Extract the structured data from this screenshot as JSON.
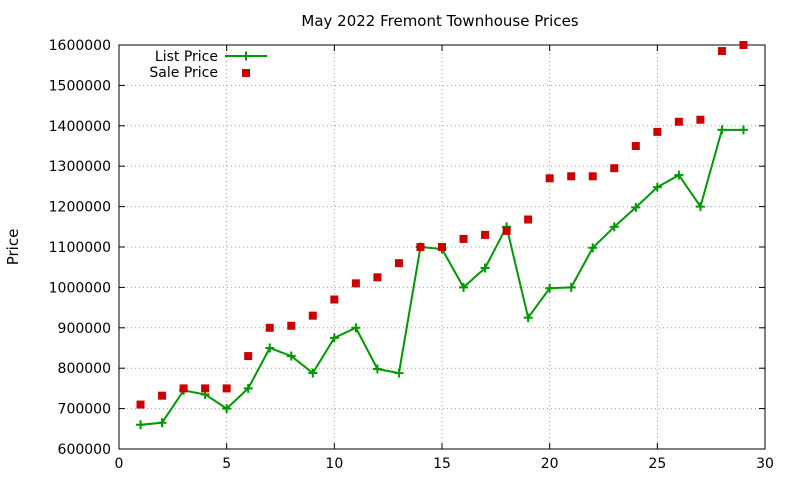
{
  "chart_data": {
    "type": "line",
    "title": "May 2022 Fremont Townhouse Prices",
    "xlabel": "",
    "ylabel": "Price",
    "xlim": [
      0,
      30
    ],
    "ylim": [
      600000,
      1600000
    ],
    "x_ticks": [
      0,
      5,
      10,
      15,
      20,
      25,
      30
    ],
    "y_ticks": [
      600000,
      700000,
      800000,
      900000,
      1000000,
      1100000,
      1200000,
      1300000,
      1400000,
      1500000,
      1600000
    ],
    "grid": true,
    "legend_position": "top-left",
    "series": [
      {
        "name": "List Price",
        "type": "line",
        "marker": "plus",
        "color": "#009900",
        "points": [
          [
            1,
            660000
          ],
          [
            2,
            665000
          ],
          [
            3,
            745000
          ],
          [
            4,
            735000
          ],
          [
            5,
            700000
          ],
          [
            6,
            750000
          ],
          [
            7,
            850000
          ],
          [
            8,
            830000
          ],
          [
            9,
            788000
          ],
          [
            10,
            875000
          ],
          [
            11,
            900000
          ],
          [
            12,
            798000
          ],
          [
            13,
            788000
          ],
          [
            14,
            1100000
          ],
          [
            15,
            1095000
          ],
          [
            16,
            1000000
          ],
          [
            17,
            1048000
          ],
          [
            18,
            1150000
          ],
          [
            19,
            925000
          ],
          [
            20,
            998000
          ],
          [
            21,
            1000000
          ],
          [
            22,
            1098000
          ],
          [
            23,
            1150000
          ],
          [
            24,
            1198000
          ],
          [
            25,
            1248000
          ],
          [
            26,
            1278000
          ],
          [
            27,
            1200000
          ],
          [
            28,
            1390000
          ],
          [
            29,
            1390000
          ]
        ]
      },
      {
        "name": "Sale Price",
        "type": "scatter",
        "marker": "square",
        "color": "#cc0000",
        "points": [
          [
            1,
            710000
          ],
          [
            2,
            732000
          ],
          [
            3,
            750000
          ],
          [
            4,
            750000
          ],
          [
            5,
            750000
          ],
          [
            6,
            830000
          ],
          [
            7,
            900000
          ],
          [
            8,
            905000
          ],
          [
            9,
            930000
          ],
          [
            10,
            970000
          ],
          [
            11,
            1010000
          ],
          [
            12,
            1025000
          ],
          [
            13,
            1060000
          ],
          [
            14,
            1100000
          ],
          [
            15,
            1100000
          ],
          [
            16,
            1120000
          ],
          [
            17,
            1130000
          ],
          [
            18,
            1140000
          ],
          [
            19,
            1168000
          ],
          [
            20,
            1270000
          ],
          [
            21,
            1275000
          ],
          [
            22,
            1275000
          ],
          [
            23,
            1295000
          ],
          [
            24,
            1350000
          ],
          [
            25,
            1385000
          ],
          [
            26,
            1410000
          ],
          [
            27,
            1415000
          ],
          [
            28,
            1585000
          ],
          [
            29,
            1600000
          ]
        ]
      }
    ]
  }
}
